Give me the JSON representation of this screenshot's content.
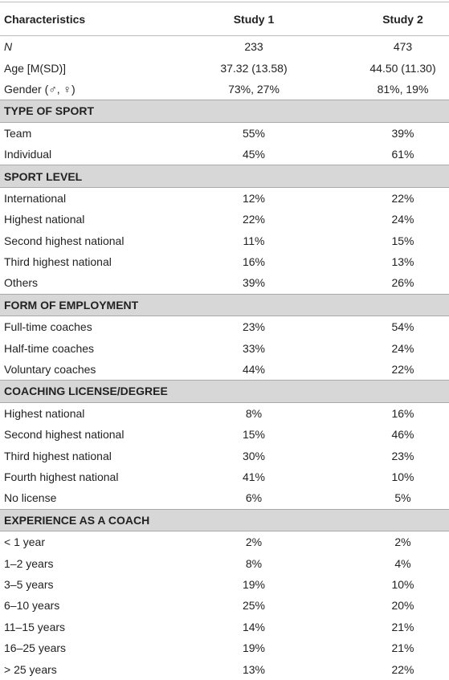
{
  "table": {
    "header": [
      "Characteristics",
      "Study 1",
      "Study 2"
    ],
    "rows": [
      [
        "N",
        "233",
        "473"
      ],
      [
        "Age [M(SD)]",
        "37.32 (13.58)",
        "44.50 (11.30)"
      ],
      [
        "Gender (♂, ♀)",
        "73%, 27%",
        "81%, 19%"
      ],
      [
        "TYPE OF SPORT"
      ],
      [
        "Team",
        "55%",
        "39%"
      ],
      [
        "Individual",
        "45%",
        "61%"
      ],
      [
        "SPORT LEVEL"
      ],
      [
        "International",
        "12%",
        "22%"
      ],
      [
        "Highest national",
        "22%",
        "24%"
      ],
      [
        "Second highest national",
        "11%",
        "15%"
      ],
      [
        "Third highest national",
        "16%",
        "13%"
      ],
      [
        "Others",
        "39%",
        "26%"
      ],
      [
        "FORM OF EMPLOYMENT"
      ],
      [
        "Full-time coaches",
        "23%",
        "54%"
      ],
      [
        "Half-time coaches",
        "33%",
        "24%"
      ],
      [
        "Voluntary coaches",
        "44%",
        "22%"
      ],
      [
        "COACHING LICENSE/DEGREE"
      ],
      [
        "Highest national",
        "8%",
        "16%"
      ],
      [
        "Second highest national",
        "15%",
        "46%"
      ],
      [
        "Third highest national",
        "30%",
        "23%"
      ],
      [
        "Fourth highest national",
        "41%",
        "10%"
      ],
      [
        "No license",
        "6%",
        "5%"
      ],
      [
        "EXPERIENCE AS A COACH"
      ],
      [
        "< 1 year",
        "2%",
        "2%"
      ],
      [
        "1–2 years",
        "8%",
        "4%"
      ],
      [
        "3–5 years",
        "19%",
        "10%"
      ],
      [
        "6–10 years",
        "25%",
        "20%"
      ],
      [
        "11–15 years",
        "14%",
        "21%"
      ],
      [
        "16–25 years",
        "19%",
        "21%"
      ],
      [
        "> 25 years",
        "13%",
        "22%"
      ]
    ]
  }
}
